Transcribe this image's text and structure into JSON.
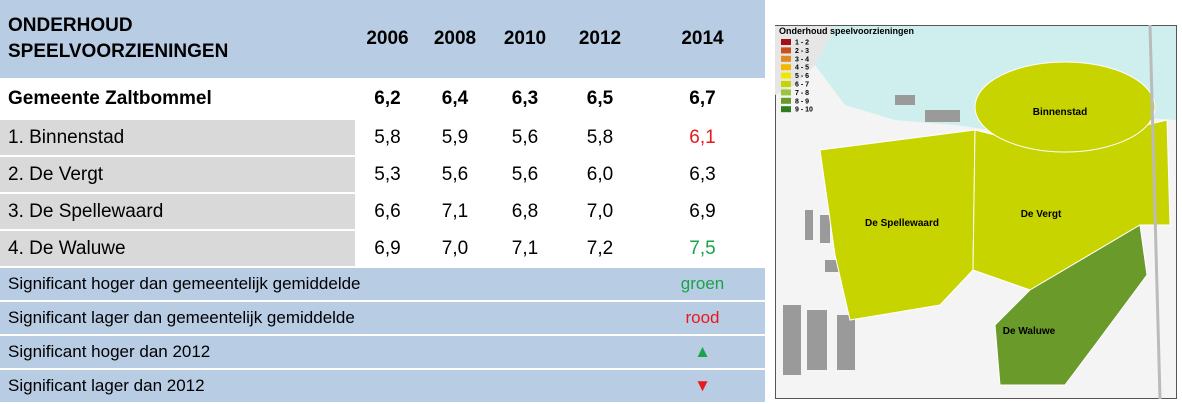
{
  "table": {
    "header": [
      "ONDERHOUD SPEELVOORZIENINGEN",
      "2006",
      "2008",
      "2010",
      "2012",
      "2014"
    ],
    "rows": [
      [
        "Gemeente Zaltbommel",
        "6,2",
        "6,4",
        "6,3",
        "6,5",
        "6,7"
      ],
      [
        "1. Binnenstad",
        "5,8",
        "5,9",
        "5,6",
        "5,8",
        "6,1"
      ],
      [
        "2. De Vergt",
        "5,3",
        "5,6",
        "5,6",
        "6,0",
        "6,3"
      ],
      [
        "3. De Spellewaard",
        "6,6",
        "7,1",
        "6,8",
        "7,0",
        "6,9"
      ],
      [
        "4. De Waluwe",
        "6,9",
        "7,0",
        "7,1",
        "7,2",
        "7,5"
      ]
    ],
    "legend": [
      [
        "Significant hoger dan gemeentelijk gemiddelde",
        "groen"
      ],
      [
        "Significant lager dan gemeentelijk gemiddelde",
        "rood"
      ],
      [
        "Significant hoger dan 2012",
        "▲"
      ],
      [
        "Significant lager dan 2012",
        "▼"
      ]
    ]
  },
  "map": {
    "title": "Onderhoud speelvoorzieningen",
    "legend": [
      "1 - 2",
      "2 - 3",
      "3 - 4",
      "4 - 5",
      "5 - 6",
      "6 - 7",
      "7 - 8",
      "8 - 9",
      "9 - 10"
    ],
    "regions": [
      "Binnenstad",
      "De Vergt",
      "De Spellewaard",
      "De Waluwe"
    ]
  }
}
